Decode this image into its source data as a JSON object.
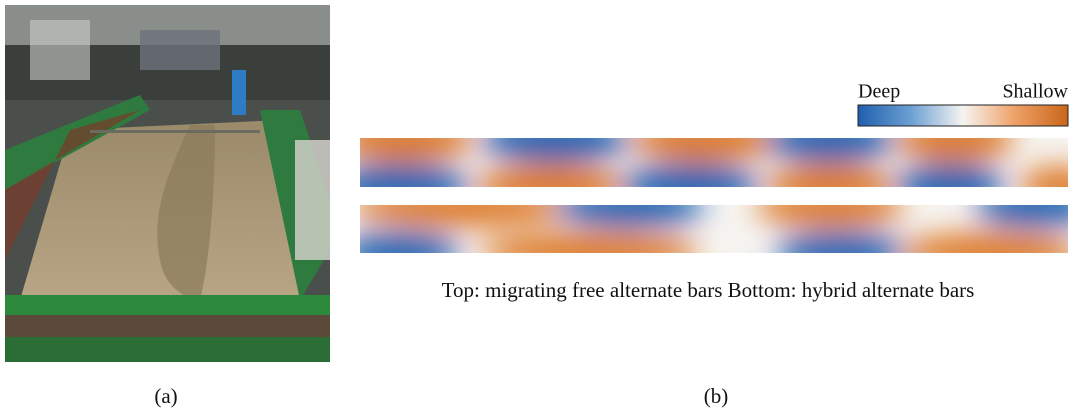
{
  "panel_a": {
    "label": "(a)"
  },
  "panel_b": {
    "label": "(b)",
    "colorbar": {
      "low": "Deep",
      "high": "Shallow"
    },
    "caption": "Top: migrating free alternate bars Bottom: hybrid alternate bars"
  }
}
